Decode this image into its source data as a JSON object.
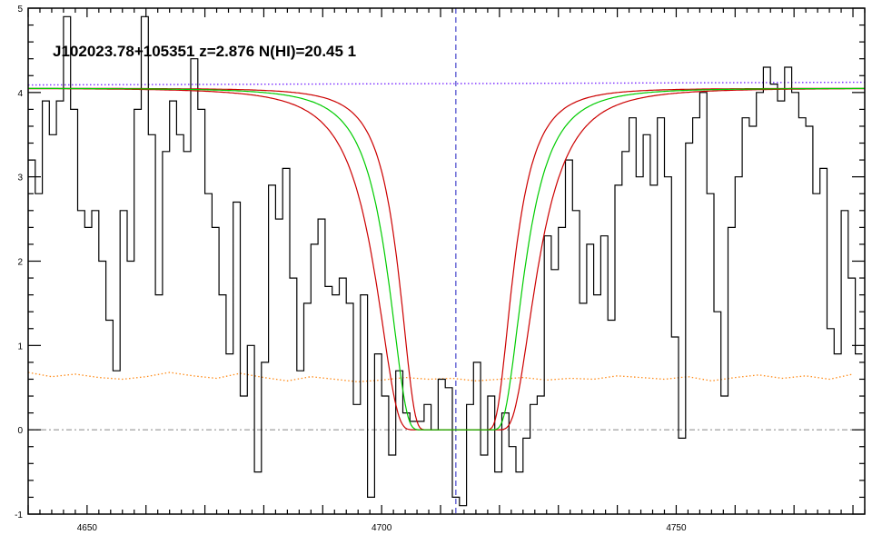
{
  "chart_data": {
    "type": "line",
    "title": "J102023.78+105351 z=2.876 N(HI)=20.45 1",
    "xlim": [
      4640,
      4782
    ],
    "ylim": [
      -1,
      5
    ],
    "x_ticks": [
      4650,
      4700,
      4750
    ],
    "y_ticks": [
      -1,
      0,
      1,
      2,
      3,
      4,
      5
    ],
    "line_center_x": 4712.6,
    "continuum_level": 4.1,
    "zero_level": 0,
    "error_level_approx": 0.65,
    "model_profile": {
      "continuum": 4.05,
      "center": 4712.6,
      "half_width_best": 11.2,
      "half_width_low": 9.4,
      "half_width_high": 13.3,
      "core_flux": 0
    },
    "flux_spectrum": {
      "x": [
        4640.0,
        4641.2,
        4642.4,
        4643.6,
        4644.8,
        4646.0,
        4647.2,
        4648.4,
        4649.6,
        4650.8,
        4652.0,
        4653.2,
        4654.4,
        4655.6,
        4656.8,
        4658.0,
        4659.2,
        4660.4,
        4661.6,
        4662.8,
        4664.0,
        4665.2,
        4666.4,
        4667.6,
        4668.8,
        4670.0,
        4671.2,
        4672.4,
        4673.6,
        4674.8,
        4676.0,
        4677.2,
        4678.4,
        4679.6,
        4680.8,
        4682.0,
        4683.2,
        4684.4,
        4685.6,
        4686.8,
        4688.0,
        4689.2,
        4690.4,
        4691.6,
        4692.8,
        4694.0,
        4695.2,
        4696.4,
        4697.6,
        4698.8,
        4700.0,
        4701.2,
        4702.4,
        4703.6,
        4704.8,
        4706.0,
        4707.2,
        4708.4,
        4709.6,
        4710.8,
        4712.0,
        4713.2,
        4714.4,
        4715.6,
        4716.8,
        4718.0,
        4719.2,
        4720.4,
        4721.6,
        4722.8,
        4724.0,
        4725.2,
        4726.4,
        4727.6,
        4728.8,
        4730.0,
        4731.2,
        4732.4,
        4733.6,
        4734.8,
        4736.0,
        4737.2,
        4738.4,
        4739.6,
        4740.8,
        4742.0,
        4743.2,
        4744.4,
        4745.6,
        4746.8,
        4748.0,
        4749.2,
        4750.4,
        4751.6,
        4752.8,
        4754.0,
        4755.2,
        4756.4,
        4757.6,
        4758.8,
        4760.0,
        4761.2,
        4762.4,
        4763.6,
        4764.8,
        4766.0,
        4767.2,
        4768.4,
        4769.6,
        4770.8,
        4772.0,
        4773.2,
        4774.4,
        4775.6,
        4776.8,
        4778.0,
        4779.2,
        4780.4
      ],
      "y": [
        3.2,
        2.8,
        3.9,
        3.5,
        3.9,
        4.9,
        3.8,
        2.6,
        2.4,
        2.6,
        2.0,
        1.3,
        0.7,
        2.6,
        2.0,
        3.8,
        4.9,
        3.5,
        1.6,
        3.3,
        3.9,
        3.5,
        3.3,
        4.4,
        3.8,
        2.8,
        2.4,
        1.6,
        0.9,
        2.7,
        0.4,
        1.0,
        -0.5,
        0.8,
        2.9,
        2.5,
        3.1,
        1.8,
        0.7,
        1.5,
        2.2,
        2.5,
        1.7,
        1.6,
        1.8,
        1.5,
        0.3,
        1.6,
        -0.8,
        0.9,
        0.4,
        -0.3,
        0.7,
        0.2,
        0.1,
        0.1,
        0.3,
        0.0,
        0.6,
        0.5,
        -0.8,
        -0.9,
        0.3,
        0.8,
        -0.3,
        0.4,
        -0.5,
        0.2,
        -0.2,
        -0.5,
        -0.1,
        0.3,
        0.4,
        2.3,
        1.9,
        2.4,
        3.2,
        2.6,
        1.5,
        2.2,
        1.6,
        2.3,
        1.3,
        2.9,
        3.3,
        3.7,
        3.0,
        3.5,
        2.9,
        3.7,
        3.0,
        1.1,
        -0.1,
        3.4,
        3.7,
        4.0,
        2.8,
        1.4,
        0.4,
        2.4,
        3.0,
        3.7,
        3.6,
        4.0,
        4.3,
        4.1,
        3.9,
        4.3,
        4.0,
        3.7,
        3.6,
        2.8,
        3.1,
        1.2,
        0.9,
        2.6,
        1.8,
        0.9
      ]
    },
    "error_spectrum": {
      "x": [
        4640,
        4644,
        4648,
        4652,
        4656,
        4660,
        4664,
        4668,
        4672,
        4676,
        4680,
        4684,
        4688,
        4692,
        4696,
        4700,
        4704,
        4708,
        4712,
        4716,
        4720,
        4724,
        4728,
        4732,
        4736,
        4740,
        4744,
        4748,
        4752,
        4756,
        4760,
        4764,
        4768,
        4772,
        4776,
        4780
      ],
      "y": [
        0.68,
        0.63,
        0.66,
        0.62,
        0.6,
        0.63,
        0.68,
        0.64,
        0.61,
        0.67,
        0.62,
        0.58,
        0.63,
        0.6,
        0.57,
        0.59,
        0.62,
        0.6,
        0.61,
        0.58,
        0.6,
        0.62,
        0.59,
        0.61,
        0.6,
        0.64,
        0.62,
        0.6,
        0.63,
        0.58,
        0.62,
        0.65,
        0.61,
        0.64,
        0.6,
        0.66
      ]
    },
    "colors": {
      "flux": "#000000",
      "error": "#ff8c1a",
      "best_fit": "#00cc00",
      "bounds": "#cc0000",
      "continuum": "#7a2cff",
      "center_marker": "#2020c0",
      "zero_line": "#888888"
    }
  }
}
